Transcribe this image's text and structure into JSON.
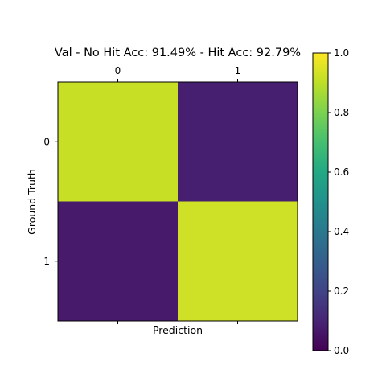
{
  "chart_data": {
    "type": "heatmap",
    "title": "Val - No Hit Acc: 91.49% - Hit Acc: 92.79%",
    "xlabel": "Prediction",
    "ylabel": "Ground Truth",
    "x_tick_labels": [
      "0",
      "1"
    ],
    "y_tick_labels": [
      "0",
      "1"
    ],
    "matrix": [
      [
        0.9149,
        0.0851
      ],
      [
        0.0721,
        0.9279
      ]
    ],
    "colormap": "viridis",
    "color_range": [
      0.0,
      1.0
    ],
    "colorbar_ticks": [
      "0.0",
      "0.2",
      "0.4",
      "0.6",
      "0.8",
      "1.0"
    ],
    "colorbar_tick_values": [
      0.0,
      0.2,
      0.4,
      0.6,
      0.8,
      1.0
    ],
    "grid": false
  }
}
